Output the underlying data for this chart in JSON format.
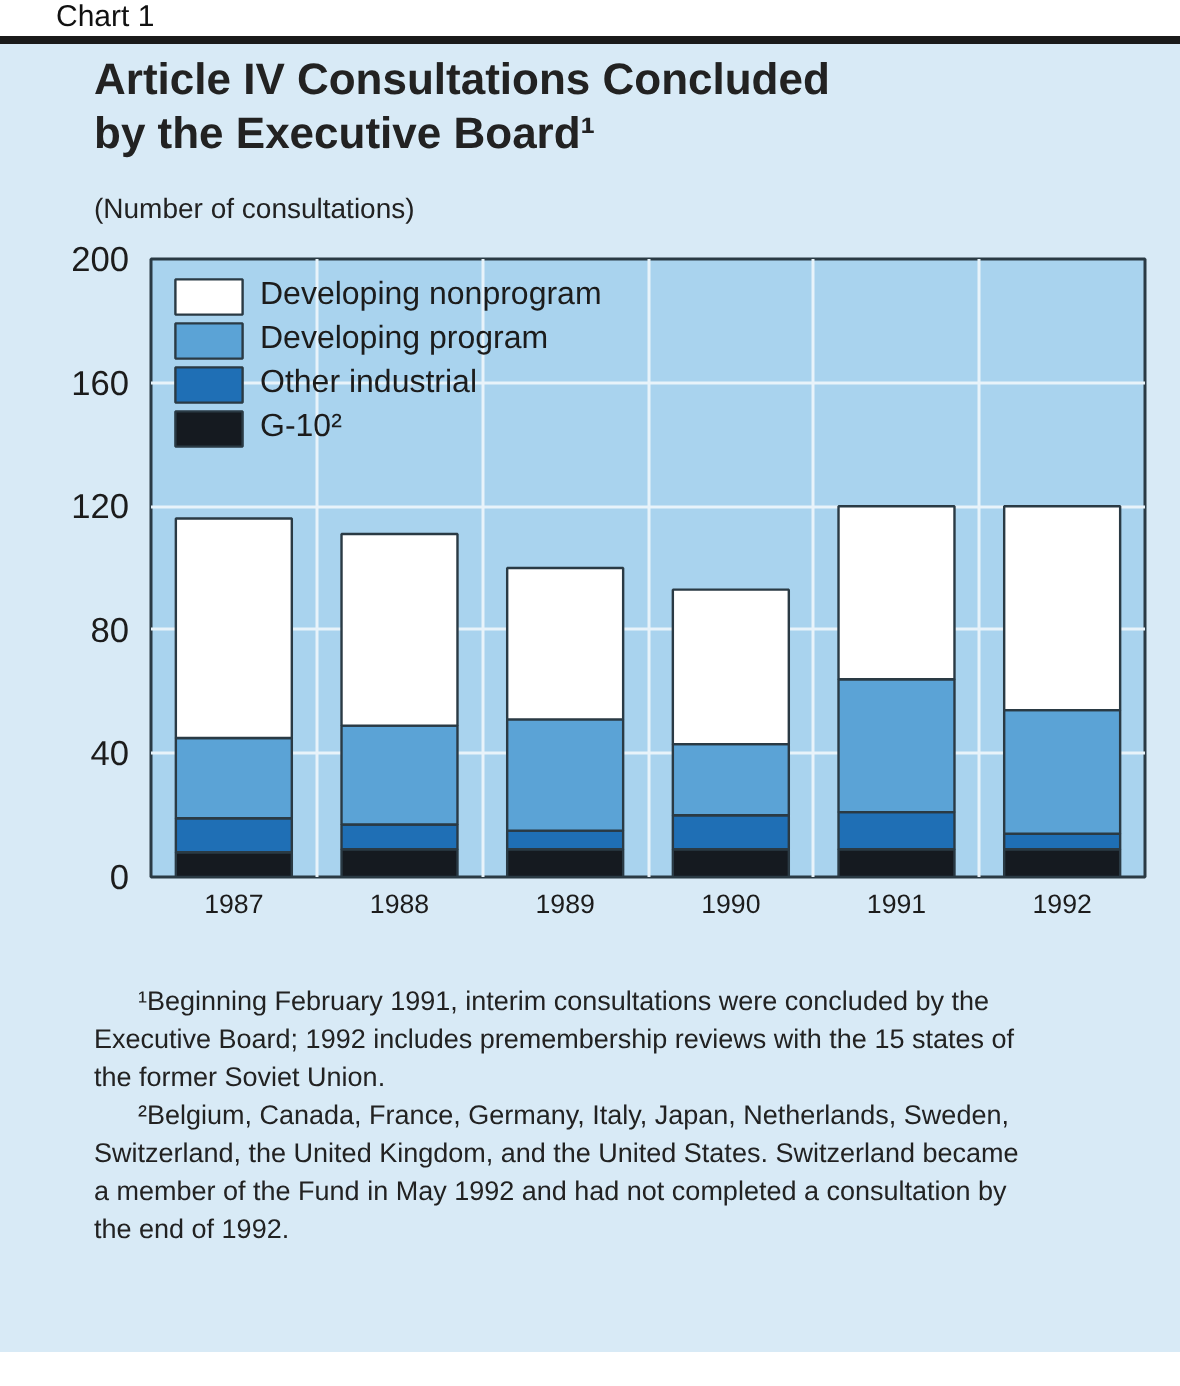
{
  "chart_data": {
    "type": "bar",
    "title": "Article IV Consultations Concluded by the Executive Board¹",
    "subtitle": "(Number of consultations)",
    "categories": [
      "1987",
      "1988",
      "1989",
      "1990",
      "1991",
      "1992"
    ],
    "stacked": true,
    "series": [
      {
        "name": "G-10²",
        "color": "#151a20",
        "values": [
          8,
          9,
          9,
          9,
          9,
          9
        ]
      },
      {
        "name": "Other industrial",
        "color": "#1f6fb5",
        "values": [
          11,
          8,
          6,
          11,
          12,
          5
        ]
      },
      {
        "name": "Developing program",
        "color": "#5ba3d6",
        "values": [
          26,
          32,
          36,
          23,
          43,
          40
        ]
      },
      {
        "name": "Developing nonprogram",
        "color": "#ffffff",
        "values": [
          71,
          62,
          49,
          50,
          56,
          66
        ]
      }
    ],
    "ylim": [
      0,
      200
    ],
    "yticks": [
      0,
      40,
      80,
      120,
      160,
      200
    ],
    "grid": true,
    "legend": "top left",
    "annotations": [
      "Chart 1",
      "¹Beginning February 1991, interim consultations were concluded by the Executive Board; 1992 includes premembership reviews with the 15 states of the former Soviet Union.",
      "²Belgium, Canada, France, Germany, Italy, Japan, Netherlands, Sweden, Switzerland, the United Kingdom, and the United States. Switzerland became a member of the Fund in May 1992 and had not completed a consultation by the end of 1992."
    ]
  }
}
